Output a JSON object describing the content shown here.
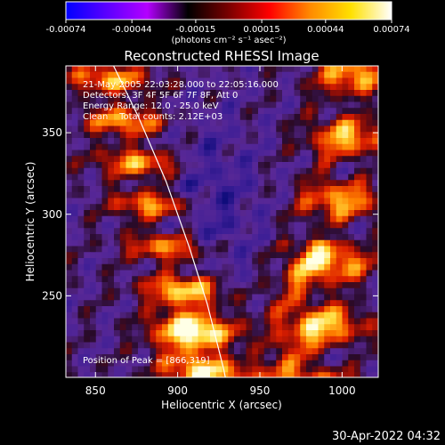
{
  "colorbar": {
    "ticks": [
      "-0.00074",
      "-0.00044",
      "-0.00015",
      "0.00015",
      "0.00044",
      "0.00074"
    ],
    "tick_values": [
      -0.00074,
      -0.00044,
      -0.00015,
      0.00015,
      0.00044,
      0.00074
    ],
    "range": [
      -0.00074,
      0.00074
    ],
    "units": "(photons cm⁻² s⁻¹ asec⁻²)",
    "colors": [
      "#0000ff",
      "#5a00ff",
      "#b400ff",
      "#000000",
      "#7a0000",
      "#ff0000",
      "#ff8a00",
      "#ffe000",
      "#ffffff"
    ]
  },
  "chart_data": {
    "type": "heatmap",
    "title": "Reconstructed RHESSI Image",
    "xlabel": "Heliocentric X (arcsec)",
    "ylabel": "Heliocentric Y (arcsec)",
    "xlim": [
      832,
      1022
    ],
    "ylim": [
      200,
      391
    ],
    "x_ticks": [
      850,
      900,
      950,
      1000
    ],
    "y_ticks": [
      250,
      300,
      350
    ],
    "limb_curve": [
      [
        861,
        391
      ],
      [
        876,
        360
      ],
      [
        893,
        320
      ],
      [
        907,
        280
      ],
      [
        918,
        245
      ],
      [
        928,
        205
      ],
      [
        929,
        200
      ]
    ],
    "annotations": [
      "21-May-2005 22:03:28.000 to 22:05:16.000",
      "Detectors: 3F 4F 5F 6F 7F 8F, Att 0",
      "Energy Range: 12.0 - 25.0 keV",
      "Clean    Total counts: 2.12E+03"
    ],
    "peak_label": "Position of Peak = [866,319]"
  },
  "footer": {
    "timestamp": "30-Apr-2022 04:32"
  }
}
